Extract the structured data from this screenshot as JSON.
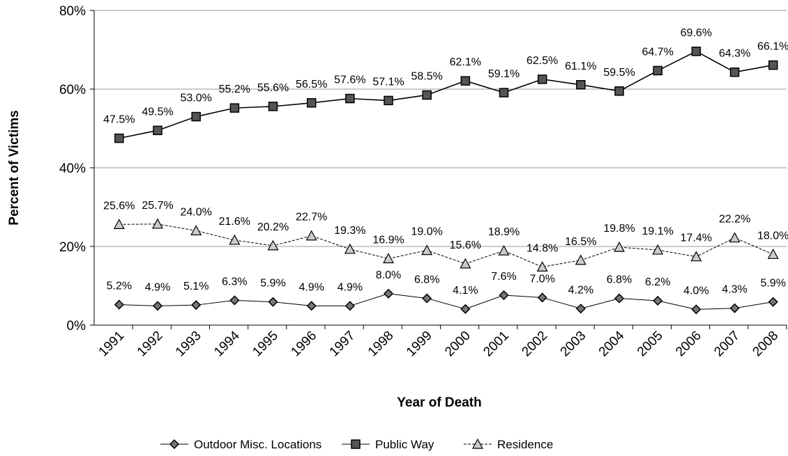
{
  "chart_data": {
    "type": "line",
    "x_label": "Year of Death",
    "y_label": "Percent of Victims",
    "categories": [
      "1991",
      "1992",
      "1993",
      "1994",
      "1995",
      "1996",
      "1997",
      "1998",
      "1999",
      "2000",
      "2001",
      "2002",
      "2003",
      "2004",
      "2005",
      "2006",
      "2007",
      "2008"
    ],
    "series": [
      {
        "name": "Outdoor Misc. Locations",
        "color": "#000000",
        "marker": "diamond",
        "values": [
          5.2,
          4.9,
          5.1,
          6.3,
          5.9,
          4.9,
          4.9,
          8.0,
          6.8,
          4.1,
          7.6,
          7.0,
          4.2,
          6.8,
          6.2,
          4.0,
          4.3,
          5.9
        ],
        "value_labels": [
          "5.2%",
          "4.9%",
          "5.1%",
          "6.3%",
          "5.9%",
          "4.9%",
          "4.9%",
          "8.0%",
          "6.8%",
          "4.1%",
          "7.6%",
          "7.0%",
          "4.2%",
          "6.8%",
          "6.2%",
          "4.0%",
          "4.3%",
          "5.9%"
        ]
      },
      {
        "name": "Public Way",
        "color": "#000000",
        "marker": "square",
        "values": [
          47.5,
          49.5,
          53.0,
          55.2,
          55.6,
          56.5,
          57.6,
          57.1,
          58.5,
          62.1,
          59.1,
          62.5,
          61.1,
          59.5,
          64.7,
          69.6,
          64.3,
          66.1
        ],
        "value_labels": [
          "47.5%",
          "49.5%",
          "53.0%",
          "55.2%",
          "55.6%",
          "56.5%",
          "57.6%",
          "57.1%",
          "58.5%",
          "62.1%",
          "59.1%",
          "62.5%",
          "61.1%",
          "59.5%",
          "64.7%",
          "69.6%",
          "64.3%",
          "66.1%"
        ]
      },
      {
        "name": "Residence",
        "color": "#000000",
        "marker": "triangle",
        "values": [
          25.6,
          25.7,
          24.0,
          21.6,
          20.2,
          22.7,
          19.3,
          16.9,
          19.0,
          15.6,
          18.9,
          14.8,
          16.5,
          19.8,
          19.1,
          17.4,
          22.2,
          18.0
        ],
        "value_labels": [
          "25.6%",
          "25.7%",
          "24.0%",
          "21.6%",
          "20.2%",
          "22.7%",
          "19.3%",
          "16.9%",
          "19.0%",
          "15.6%",
          "18.9%",
          "14.8%",
          "16.5%",
          "19.8%",
          "19.1%",
          "17.4%",
          "22.2%",
          "18.0%"
        ]
      }
    ],
    "ylim": [
      0,
      80
    ],
    "yticks": [
      {
        "value": 0,
        "label": "0%"
      },
      {
        "value": 20,
        "label": "20%"
      },
      {
        "value": 40,
        "label": "40%"
      },
      {
        "value": 60,
        "label": "60%"
      },
      {
        "value": 80,
        "label": "80%"
      }
    ],
    "grid": true,
    "legend": "bottom"
  }
}
